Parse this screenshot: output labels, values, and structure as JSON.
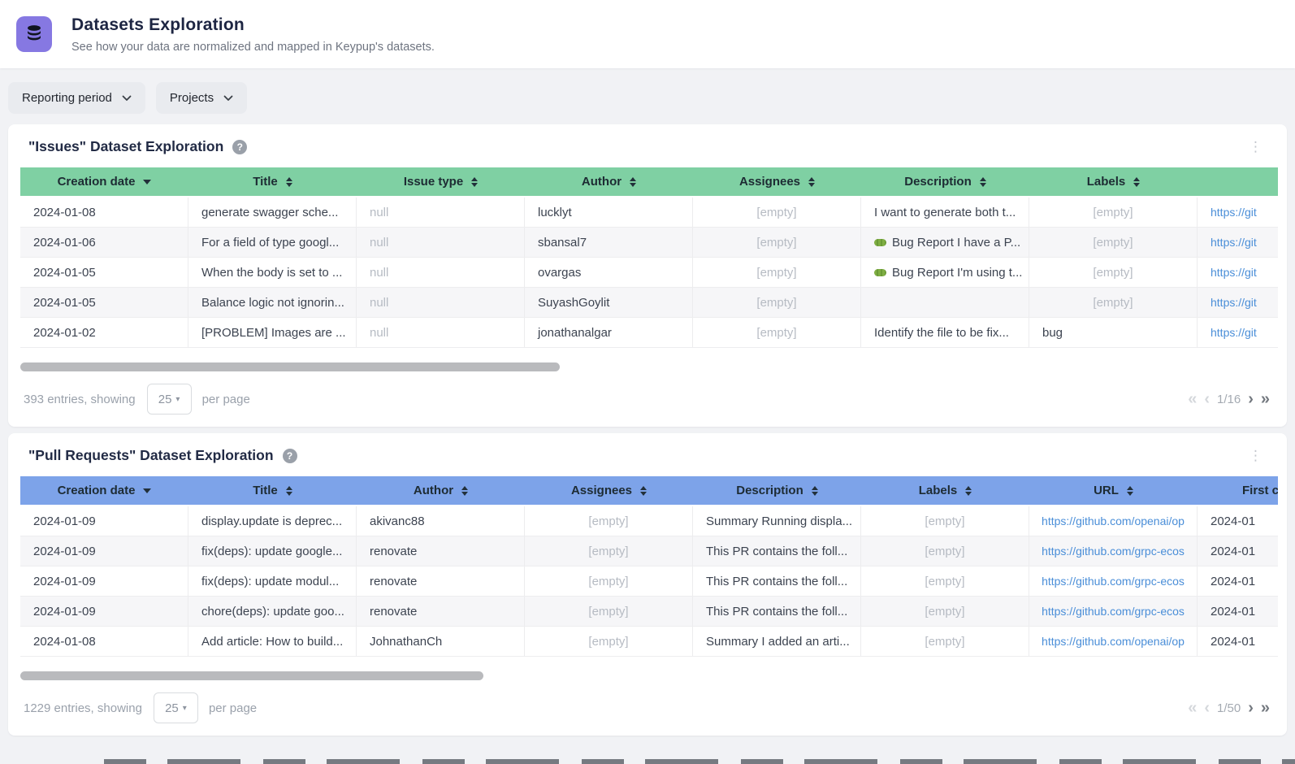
{
  "header": {
    "title": "Datasets Exploration",
    "subtitle": "See how your data are normalized and mapped in Keypup's datasets."
  },
  "filters": {
    "reporting_period": "Reporting period",
    "projects": "Projects"
  },
  "icons": {
    "help": "?",
    "kebab": "⋮",
    "caret_down": "▾",
    "first_page": "«",
    "prev_page": "‹",
    "next_page": "›",
    "last_page": "»"
  },
  "issues": {
    "title": "\"Issues\" Dataset Exploration",
    "header_color": "#7fd0a3",
    "columns": [
      {
        "label": "Creation date",
        "sort": "desc"
      },
      {
        "label": "Title",
        "sort": "both"
      },
      {
        "label": "Issue type",
        "sort": "both"
      },
      {
        "label": "Author",
        "sort": "both"
      },
      {
        "label": "Assignees",
        "sort": "both"
      },
      {
        "label": "Description",
        "sort": "both"
      },
      {
        "label": "Labels",
        "sort": "both"
      },
      {
        "label": "",
        "sort": "none",
        "type": "link-left"
      }
    ],
    "rows": [
      [
        "2024-01-08",
        "generate swagger sche...",
        "null",
        "lucklyt",
        "[empty]",
        "I want to generate both t...",
        "[empty]",
        "https://git"
      ],
      [
        "2024-01-06",
        "For a field of type googl...",
        "null",
        "sbansal7",
        "[empty]",
        "🐛 Bug Report I have a P...",
        "[empty]",
        "https://git"
      ],
      [
        "2024-01-05",
        "When the body is set to ...",
        "null",
        "ovargas",
        "[empty]",
        "🐛 Bug Report I'm using t...",
        "[empty]",
        "https://git"
      ],
      [
        "2024-01-05",
        "Balance logic not ignorin...",
        "null",
        "SuyashGoylit",
        "[empty]",
        "",
        "[empty]",
        "https://git"
      ],
      [
        "2024-01-02",
        "[PROBLEM] Images are ...",
        "null",
        "jonathanalgar",
        "[empty]",
        "Identify the file to be fix...",
        "bug",
        "https://git"
      ]
    ],
    "scroll_thumb_width": 664,
    "footer": {
      "entries": "393 entries, showing",
      "per_page": "25",
      "per_page_label": "per page",
      "page": "1/16"
    }
  },
  "pull_requests": {
    "title": "\"Pull Requests\" Dataset Exploration",
    "header_color": "#7da3e9",
    "columns": [
      {
        "label": "Creation date",
        "sort": "desc"
      },
      {
        "label": "Title",
        "sort": "both"
      },
      {
        "label": "Author",
        "sort": "both"
      },
      {
        "label": "Assignees",
        "sort": "both"
      },
      {
        "label": "Description",
        "sort": "both"
      },
      {
        "label": "Labels",
        "sort": "both"
      },
      {
        "label": "URL",
        "sort": "both",
        "type": "link"
      },
      {
        "label": "First c",
        "sort": "none",
        "clip": true
      }
    ],
    "rows": [
      [
        "2024-01-09",
        "display.update is deprec...",
        "akivanc88",
        "[empty]",
        "Summary Running displa...",
        "[empty]",
        "https://github.com/openai/op",
        "2024-01"
      ],
      [
        "2024-01-09",
        "fix(deps): update google...",
        "renovate",
        "[empty]",
        "This PR contains the foll...",
        "[empty]",
        "https://github.com/grpc-ecos",
        "2024-01"
      ],
      [
        "2024-01-09",
        "fix(deps): update modul...",
        "renovate",
        "[empty]",
        "This PR contains the foll...",
        "[empty]",
        "https://github.com/grpc-ecos",
        "2024-01"
      ],
      [
        "2024-01-09",
        "chore(deps): update goo...",
        "renovate",
        "[empty]",
        "This PR contains the foll...",
        "[empty]",
        "https://github.com/grpc-ecos",
        "2024-01"
      ],
      [
        "2024-01-08",
        "Add article: How to build...",
        "JohnathanCh",
        "[empty]",
        "Summary I added an arti...",
        "[empty]",
        "https://github.com/openai/op",
        "2024-01"
      ]
    ],
    "scroll_thumb_width": 570,
    "footer": {
      "entries": "1229 entries, showing",
      "per_page": "25",
      "per_page_label": "per page",
      "page": "1/50"
    }
  }
}
